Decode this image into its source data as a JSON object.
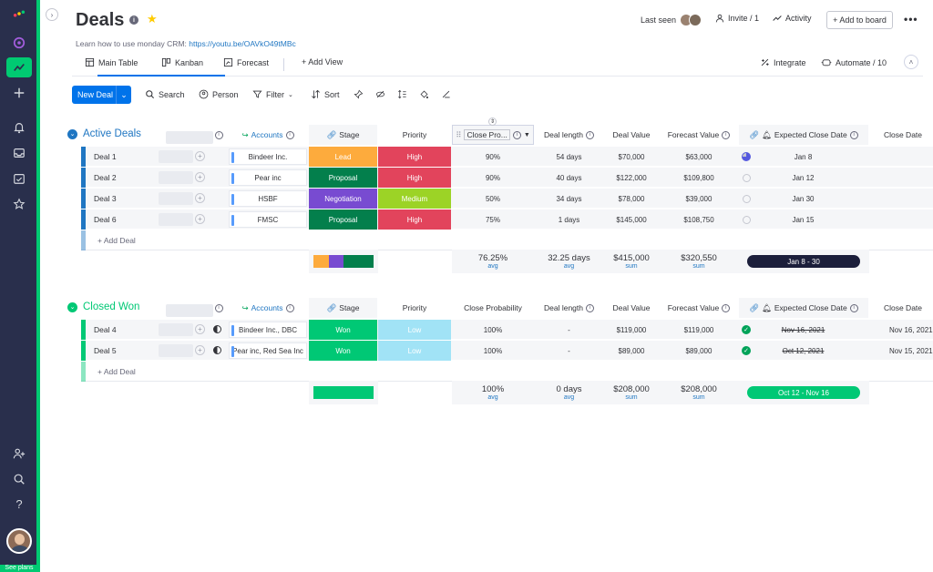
{
  "board": {
    "title": "Deals",
    "subtitle_text": "Learn how to use monday CRM: ",
    "subtitle_link": "https://youtu.be/OAVkO49tMBc"
  },
  "header": {
    "last_seen": "Last seen",
    "invite": "Invite / 1",
    "activity": "Activity",
    "add_to_board": "+ Add to board"
  },
  "tabs": {
    "main_table": "Main Table",
    "kanban": "Kanban",
    "forecast": "Forecast",
    "add_view": "+ Add View",
    "integrate": "Integrate",
    "automate": "Automate / 10"
  },
  "toolbar": {
    "new_deal": "New Deal",
    "search": "Search",
    "person": "Person",
    "filter": "Filter",
    "sort": "Sort"
  },
  "colors": {
    "brand_green": "#00ca72",
    "primary": "#0073ea",
    "active_group": "#1f76c2",
    "won_group": "#00c875",
    "lead": "#fdab3d",
    "proposal": "#037f4c",
    "negotiation": "#784bd1",
    "won": "#00c875",
    "high": "#e2445c",
    "medium": "#9cd326",
    "low": "#a1e3f6"
  },
  "active": {
    "group_title": "Active Deals",
    "headers": {
      "accounts": "Accounts",
      "stage": "Stage",
      "priority": "Priority",
      "close_prob": "Close Pro...",
      "deal_length": "Deal length",
      "deal_value": "Deal Value",
      "forecast_value": "Forecast Value",
      "expected_close": "Expected Close Date",
      "close_date": "Close Date"
    },
    "rows": [
      {
        "name": "Deal 1",
        "account": "Bindeer Inc.",
        "stage": "Lead",
        "priority": "High",
        "prob": "90%",
        "length": "54 days",
        "value": "$70,000",
        "forecast": "$63,000",
        "expected": "Jan 8"
      },
      {
        "name": "Deal 2",
        "account": "Pear inc",
        "stage": "Proposal",
        "priority": "High",
        "prob": "90%",
        "length": "40 days",
        "value": "$122,000",
        "forecast": "$109,800",
        "expected": "Jan 12"
      },
      {
        "name": "Deal 3",
        "account": "HSBF",
        "stage": "Negotiation",
        "priority": "Medium",
        "prob": "50%",
        "length": "34 days",
        "value": "$78,000",
        "forecast": "$39,000",
        "expected": "Jan 30"
      },
      {
        "name": "Deal 6",
        "account": "FMSC",
        "stage": "Proposal",
        "priority": "High",
        "prob": "75%",
        "length": "1 days",
        "value": "$145,000",
        "forecast": "$108,750",
        "expected": "Jan 15"
      }
    ],
    "add_row": "+ Add Deal",
    "summary": {
      "prob": "76.25%",
      "prob_unit": "avg",
      "length": "32.25 days",
      "length_unit": "avg",
      "value": "$415,000",
      "value_unit": "sum",
      "forecast": "$320,550",
      "forecast_unit": "sum",
      "timeline": "Jan 8 - 30"
    }
  },
  "won": {
    "group_title": "Closed Won",
    "headers": {
      "accounts": "Accounts",
      "stage": "Stage",
      "priority": "Priority",
      "close_prob": "Close Probability",
      "deal_length": "Deal length",
      "deal_value": "Deal Value",
      "forecast_value": "Forecast Value",
      "expected_close": "Expected Close Date",
      "close_date": "Close Date"
    },
    "rows": [
      {
        "name": "Deal 4",
        "account": "Bindeer Inc., DBC",
        "stage": "Won",
        "priority": "Low",
        "prob": "100%",
        "length": "-",
        "value": "$119,000",
        "forecast": "$119,000",
        "expected": "Nov 16, 2021",
        "close": "Nov 16, 2021"
      },
      {
        "name": "Deal 5",
        "account": "Pear inc, Red Sea Inc",
        "stage": "Won",
        "priority": "Low",
        "prob": "100%",
        "length": "-",
        "value": "$89,000",
        "forecast": "$89,000",
        "expected": "Oct 12, 2021",
        "close": "Nov 15, 2021"
      }
    ],
    "add_row": "+ Add Deal",
    "summary": {
      "prob": "100%",
      "prob_unit": "avg",
      "length": "0 days",
      "length_unit": "avg",
      "value": "$208,000",
      "value_unit": "sum",
      "forecast": "$208,000",
      "forecast_unit": "sum",
      "timeline": "Oct 12 - Nov 16"
    }
  },
  "rail": {
    "see_plans": "See plans"
  }
}
